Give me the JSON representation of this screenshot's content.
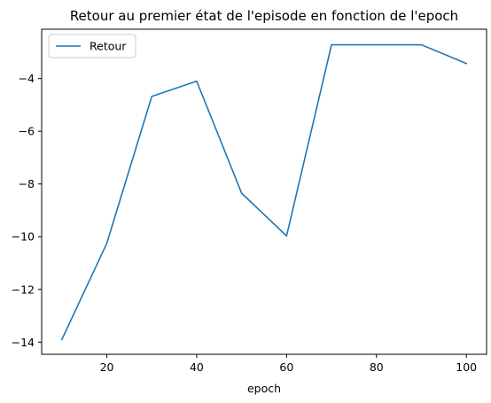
{
  "chart_data": {
    "type": "line",
    "title": "Retour au premier état de l'episode en fonction de l'epoch",
    "xlabel": "epoch",
    "ylabel": "",
    "x": [
      10,
      20,
      30,
      40,
      50,
      60,
      70,
      80,
      90,
      100
    ],
    "series": [
      {
        "name": "Retour",
        "color": "#1f77b4",
        "values": [
          -13.9,
          -10.25,
          -4.68,
          -4.1,
          -8.35,
          -9.97,
          -2.72,
          -2.72,
          -2.72,
          -3.43
        ]
      }
    ],
    "xlim": [
      5.5,
      104.5
    ],
    "ylim": [
      -14.46,
      -2.13
    ],
    "xticks": [
      20,
      40,
      60,
      80,
      100
    ],
    "xtick_labels": [
      "20",
      "40",
      "60",
      "80",
      "100"
    ],
    "yticks": [
      -4,
      -6,
      -8,
      -10,
      -12,
      -14
    ],
    "ytick_labels": [
      "−4",
      "−6",
      "−8",
      "−10",
      "−12",
      "−14"
    ],
    "grid": false,
    "legend_position": "upper-left"
  }
}
